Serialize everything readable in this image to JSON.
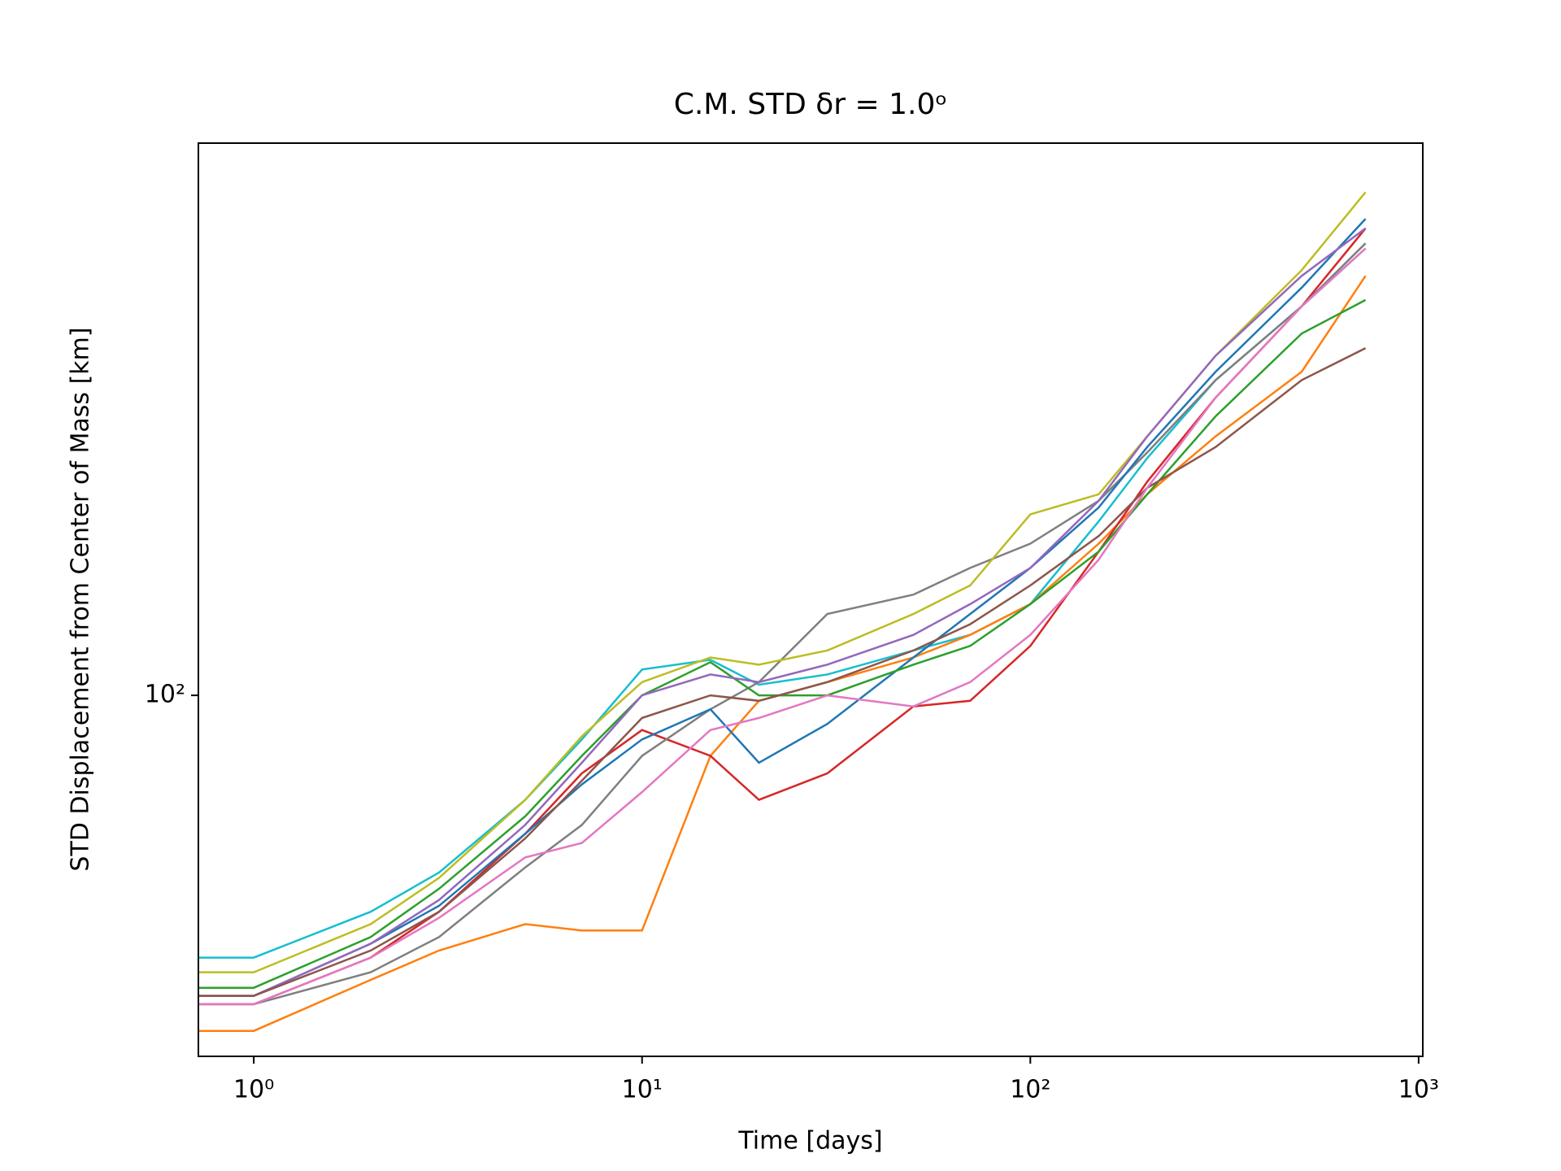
{
  "chart_data": {
    "type": "line",
    "title": "C.M. STD δr = 1.0ᵒ",
    "x_label": "Time [days]",
    "y_label": "STD Displacement from Center of Mass [km]",
    "x_scale": "log",
    "y_scale": "log",
    "xlim": [
      0.72,
      1025
    ],
    "ylim": [
      26.4,
      767
    ],
    "xticks": [
      {
        "value": 1,
        "label": "10⁰"
      },
      {
        "value": 10,
        "label": "10¹"
      },
      {
        "value": 100,
        "label": "10²"
      },
      {
        "value": 1000,
        "label": "10³"
      }
    ],
    "yticks": [
      {
        "value": 100,
        "label": "10²"
      }
    ],
    "x": [
      0.72,
      1,
      2,
      3,
      5,
      7,
      10,
      15,
      20,
      30,
      50,
      70,
      100,
      150,
      200,
      300,
      500,
      730
    ],
    "series": [
      {
        "color": "#17becf",
        "values": [
          38,
          38,
          45,
          52,
          68,
          85,
          110,
          114,
          104,
          108,
          118,
          125,
          140,
          190,
          240,
          320,
          420,
          520
        ]
      },
      {
        "color": "#ff7f0e",
        "values": [
          29,
          29,
          35,
          39,
          43,
          42,
          42,
          80,
          98,
          105,
          115,
          125,
          140,
          175,
          210,
          260,
          330,
          470
        ]
      },
      {
        "color": "#d62728",
        "values": [
          32,
          32,
          38,
          45,
          60,
          75,
          88,
          80,
          68,
          75,
          96,
          98,
          120,
          170,
          220,
          300,
          420,
          560
        ]
      },
      {
        "color": "#7f7f7f",
        "values": [
          32,
          32,
          36,
          41,
          53,
          62,
          80,
          95,
          105,
          135,
          145,
          160,
          175,
          205,
          245,
          320,
          420,
          530
        ]
      },
      {
        "color": "#bcbd22",
        "values": [
          36,
          36,
          43,
          51,
          68,
          86,
          105,
          115,
          112,
          118,
          135,
          150,
          195,
          210,
          260,
          350,
          480,
          640
        ]
      },
      {
        "color": "#1f77b4",
        "values": [
          33,
          33,
          40,
          46,
          60,
          72,
          85,
          95,
          78,
          90,
          115,
          135,
          160,
          200,
          250,
          330,
          450,
          580
        ]
      },
      {
        "color": "#2ca02c",
        "values": [
          34,
          34,
          41,
          49,
          64,
          80,
          100,
          113,
          100,
          100,
          112,
          120,
          140,
          170,
          210,
          280,
          380,
          430
        ]
      },
      {
        "color": "#9467bd",
        "values": [
          33,
          33,
          40,
          47,
          62,
          78,
          100,
          108,
          105,
          112,
          125,
          140,
          160,
          205,
          260,
          350,
          470,
          560
        ]
      },
      {
        "color": "#8c564b",
        "values": [
          33,
          33,
          39,
          45,
          59,
          73,
          92,
          100,
          98,
          105,
          118,
          130,
          150,
          180,
          215,
          250,
          320,
          360
        ]
      },
      {
        "color": "#e377c2",
        "values": [
          32,
          32,
          38,
          44,
          55,
          58,
          70,
          88,
          92,
          100,
          96,
          105,
          125,
          165,
          215,
          300,
          420,
          520
        ]
      }
    ]
  }
}
